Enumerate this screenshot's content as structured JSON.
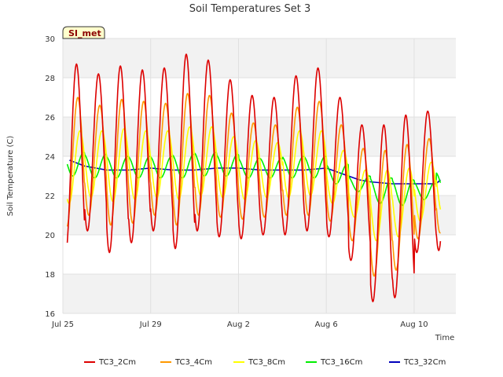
{
  "chart_data": {
    "type": "line",
    "title": "Soil Temperatures Set 3",
    "xlabel": "Time",
    "ylabel": "Soil Temperature (C)",
    "badge": "SI_met",
    "ylim": [
      16,
      30
    ],
    "xlim": [
      0,
      17.9
    ],
    "y_ticks": [
      "16",
      "18",
      "20",
      "22",
      "24",
      "26",
      "28",
      "30"
    ],
    "x_ticks": [
      {
        "label": "Jul 25",
        "day": 0
      },
      {
        "label": "Jul 29",
        "day": 4
      },
      {
        "label": "Aug 2",
        "day": 8
      },
      {
        "label": "Aug 6",
        "day": 12
      },
      {
        "label": "Aug 10",
        "day": 16
      }
    ],
    "x_range_days": [
      0.2,
      17.2
    ],
    "grid": true,
    "legend_position": "bottom",
    "series": [
      {
        "name": "TC3_2Cm",
        "color": "#dd0000",
        "phase": 0.62,
        "daily_max": [
          28.7,
          28.2,
          28.6,
          28.4,
          28.5,
          29.2,
          28.9,
          27.9,
          27.1,
          27.0,
          28.1,
          28.5,
          27.0,
          25.6,
          25.6,
          26.1,
          26.3,
          26.9
        ],
        "daily_min": [
          19.0,
          20.2,
          19.1,
          19.6,
          20.2,
          19.3,
          20.2,
          19.9,
          19.8,
          20.0,
          20.0,
          20.2,
          19.9,
          18.7,
          16.6,
          16.8,
          19.1,
          19.2
        ]
      },
      {
        "name": "TC3_4Cm",
        "color": "#ff9900",
        "phase": 0.68,
        "daily_max": [
          27.0,
          26.6,
          26.9,
          26.8,
          26.7,
          27.2,
          27.1,
          26.2,
          25.7,
          25.6,
          26.5,
          26.8,
          25.6,
          24.4,
          24.3,
          24.6,
          24.9,
          25.4
        ],
        "daily_min": [
          20.4,
          21.0,
          20.5,
          20.6,
          21.0,
          20.5,
          21.0,
          20.9,
          20.8,
          20.9,
          21.0,
          21.0,
          20.7,
          19.7,
          17.9,
          18.2,
          19.8,
          20.1
        ]
      },
      {
        "name": "TC3_8Cm",
        "color": "#ffff00",
        "phase": 0.78,
        "daily_max": [
          25.3,
          25.3,
          25.4,
          25.3,
          25.3,
          25.5,
          25.5,
          25.0,
          24.8,
          24.7,
          25.3,
          25.3,
          24.3,
          23.3,
          23.3,
          23.4,
          23.7,
          24.2
        ],
        "daily_min": [
          21.6,
          21.9,
          21.7,
          21.8,
          21.9,
          21.8,
          22.0,
          21.9,
          21.8,
          21.9,
          21.9,
          22.0,
          21.6,
          20.9,
          19.7,
          19.9,
          20.7,
          21.1
        ]
      },
      {
        "name": "TC3_16Cm",
        "color": "#00ee00",
        "phase": 0.95,
        "daily_max": [
          24.2,
          24.1,
          24.0,
          24.0,
          24.0,
          24.1,
          24.2,
          24.1,
          23.9,
          23.9,
          24.0,
          24.0,
          23.6,
          23.0,
          22.9,
          22.8,
          22.7,
          23.2
        ],
        "daily_min": [
          23.0,
          22.9,
          22.9,
          22.9,
          22.9,
          22.9,
          23.0,
          23.0,
          22.9,
          22.9,
          22.9,
          22.9,
          22.6,
          22.2,
          21.6,
          21.5,
          21.8,
          22.1
        ]
      },
      {
        "name": "TC3_32Cm",
        "color": "#0000bb",
        "x": [
          0.3,
          1.0,
          2.0,
          3.0,
          4.0,
          5.0,
          6.0,
          7.0,
          8.0,
          9.0,
          10.0,
          11.0,
          12.0,
          13.0,
          13.5,
          14.0,
          15.0,
          16.0,
          17.0,
          17.2
        ],
        "y": [
          23.8,
          23.5,
          23.3,
          23.3,
          23.4,
          23.3,
          23.3,
          23.4,
          23.4,
          23.3,
          23.3,
          23.3,
          23.4,
          23.0,
          22.8,
          22.7,
          22.6,
          22.6,
          22.6,
          22.8
        ]
      }
    ]
  }
}
